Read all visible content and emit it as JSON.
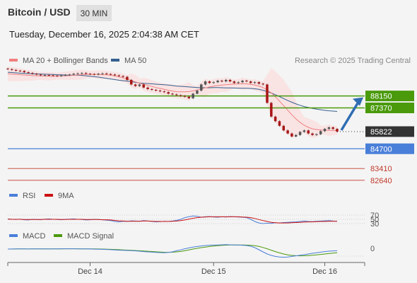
{
  "header": {
    "title": "Bitcoin / USD",
    "timeframe": "30 MIN",
    "datetime": "Tuesday, December 16, 2025 2:04:38 AM CET"
  },
  "legend": {
    "ma20": {
      "label": "MA 20 + Bollinger Bands",
      "color": "#f08080"
    },
    "ma50": {
      "label": "MA 50",
      "color": "#35608f"
    },
    "copyright": "Research © 2025 Trading Central"
  },
  "colors": {
    "resistance": "#4a9a0c",
    "current": "#333333",
    "support": "#4a7fd9",
    "lower": "#c0392b",
    "arrow": "#2f6db3",
    "rsi": "#4a7fd9",
    "rsi_ma": "#cc1111",
    "macd": "#4a7fd9",
    "macd_signal": "#4a9a0c"
  },
  "levels": [
    {
      "value": 88150,
      "label": "88150",
      "type": "resistance"
    },
    {
      "value": 87370,
      "label": "87370",
      "type": "resistance"
    },
    {
      "value": 85822,
      "label": "85822",
      "type": "current"
    },
    {
      "value": 84700,
      "label": "84700",
      "type": "support"
    },
    {
      "value": 83410,
      "label": "83410",
      "type": "lower"
    },
    {
      "value": 82640,
      "label": "82640",
      "type": "lower"
    }
  ],
  "rsi_panel": {
    "legend": [
      "RSI",
      "9MA"
    ],
    "levels": [
      "70",
      "50",
      "30"
    ]
  },
  "macd_panel": {
    "legend": [
      "MACD",
      "MACD Signal"
    ],
    "zero_label": "0"
  },
  "chart_data": {
    "type": "candlestick",
    "price_range": [
      81800,
      91600
    ],
    "x_labels": [
      "Dec 14",
      "Dec 15",
      "Dec 16"
    ],
    "close": [
      89900,
      89850,
      89800,
      89780,
      89700,
      89650,
      89600,
      89550,
      89500,
      89520,
      89500,
      89480,
      89450,
      89500,
      89520,
      89550,
      89600,
      89620,
      89650,
      89600,
      89580,
      89550,
      89600,
      89620,
      89580,
      89550,
      89500,
      89450,
      89400,
      89200,
      88900,
      88800,
      88900,
      88700,
      88600,
      88550,
      88500,
      88450,
      88400,
      88300,
      88250,
      88200,
      88150,
      88100,
      88000,
      88300,
      88500,
      88900,
      89100,
      89000,
      89050,
      89150,
      89100,
      89200,
      89100,
      89000,
      89050,
      89150,
      89100,
      89000,
      89050,
      88950,
      88900,
      87700,
      86800,
      86500,
      86200,
      85900,
      85700,
      85500,
      85600,
      85800,
      85900,
      85700,
      85600,
      85650,
      85850,
      86000,
      86100,
      86000,
      85822
    ],
    "ma20": [
      89600,
      89580,
      89560,
      89540,
      89520,
      89500,
      89480,
      89470,
      89460,
      89450,
      89440,
      89440,
      89450,
      89460,
      89470,
      89480,
      89500,
      89520,
      89540,
      89550,
      89560,
      89560,
      89550,
      89540,
      89530,
      89500,
      89460,
      89400,
      89330,
      89250,
      89160,
      89070,
      88990,
      88910,
      88840,
      88770,
      88700,
      88640,
      88580,
      88520,
      88470,
      88430,
      88420,
      88420,
      88440,
      88480,
      88540,
      88610,
      88680,
      88740,
      88790,
      88830,
      88860,
      88890,
      88910,
      88930,
      88940,
      88950,
      88940,
      88910,
      88870,
      88800,
      88700,
      88550,
      88350,
      88100,
      87820,
      87520,
      87220,
      86920,
      86650,
      86420,
      86240,
      86100,
      86000,
      85960,
      85930,
      85920,
      85910,
      85900,
      85890
    ],
    "ma50": [
      89700,
      89680,
      89660,
      89640,
      89620,
      89610,
      89600,
      89590,
      89580,
      89570,
      89560,
      89550,
      89540,
      89530,
      89520,
      89510,
      89510,
      89500,
      89490,
      89470,
      89440,
      89410,
      89380,
      89340,
      89300,
      89260,
      89220,
      89180,
      89150,
      89120,
      89080,
      89040,
      89000,
      88980,
      88960,
      88940,
      88920,
      88900,
      88880,
      88860,
      88830,
      88800,
      88780,
      88760,
      88740,
      88720,
      88700,
      88690,
      88690,
      88690,
      88700,
      88700,
      88690,
      88680,
      88680,
      88670,
      88660,
      88650,
      88650,
      88640,
      88620,
      88580,
      88520,
      88440,
      88340,
      88230,
      88110,
      87980,
      87850,
      87740,
      87630,
      87540,
      87460,
      87400,
      87340,
      87290,
      87250,
      87210,
      87180,
      87160,
      87140
    ],
    "rsi": [
      52,
      50,
      49,
      51,
      48,
      47,
      50,
      49,
      48,
      51,
      52,
      50,
      49,
      48,
      50,
      51,
      52,
      50,
      49,
      47,
      48,
      50,
      49,
      48,
      46,
      44,
      40,
      38,
      41,
      40,
      43,
      42,
      41,
      44,
      42,
      40,
      38,
      39,
      41,
      40,
      42,
      45,
      50,
      58,
      62,
      66,
      64,
      60,
      62,
      63,
      61,
      60,
      62,
      61,
      63,
      62,
      61,
      60,
      58,
      50,
      40,
      33,
      30,
      32,
      31,
      34,
      33,
      35,
      36,
      37,
      38,
      40,
      42,
      40,
      39,
      41,
      42,
      43,
      44,
      42,
      41
    ],
    "rsi_ma": [
      51,
      50,
      50,
      50,
      49,
      49,
      49,
      49,
      49,
      50,
      50,
      50,
      50,
      49,
      49,
      50,
      50,
      50,
      50,
      49,
      49,
      49,
      49,
      48,
      48,
      47,
      45,
      43,
      42,
      41,
      41,
      41,
      41,
      42,
      42,
      41,
      40,
      40,
      40,
      40,
      41,
      42,
      44,
      47,
      51,
      55,
      58,
      60,
      61,
      62,
      62,
      62,
      62,
      62,
      62,
      62,
      62,
      61,
      60,
      58,
      54,
      49,
      44,
      40,
      36,
      34,
      33,
      33,
      33,
      34,
      35,
      36,
      37,
      38,
      38,
      39,
      40,
      40,
      41,
      41,
      41
    ],
    "macd": [
      0,
      5,
      10,
      12,
      8,
      5,
      10,
      15,
      12,
      8,
      5,
      10,
      15,
      20,
      22,
      20,
      18,
      15,
      12,
      10,
      5,
      -5,
      -10,
      -20,
      -30,
      -45,
      -60,
      -80,
      -90,
      -100,
      -110,
      -130,
      -150,
      -180,
      -200,
      -220,
      -240,
      -250,
      -260,
      -240,
      -200,
      -120,
      -60,
      20,
      80,
      140,
      180,
      220,
      250,
      270,
      280,
      290,
      300,
      310,
      300,
      290,
      280,
      270,
      250,
      200,
      100,
      -50,
      -200,
      -350,
      -450,
      -520,
      -560,
      -580,
      -560,
      -520,
      -480,
      -440,
      -400,
      -350,
      -300,
      -260,
      -220,
      -180,
      -150,
      -130,
      -120
    ],
    "macd_signal": [
      0,
      2,
      5,
      8,
      8,
      7,
      8,
      10,
      11,
      10,
      9,
      10,
      12,
      15,
      18,
      19,
      19,
      18,
      16,
      14,
      12,
      8,
      4,
      -2,
      -8,
      -18,
      -30,
      -45,
      -60,
      -75,
      -90,
      -105,
      -120,
      -135,
      -155,
      -175,
      -195,
      -210,
      -225,
      -230,
      -225,
      -200,
      -170,
      -120,
      -60,
      0,
      50,
      100,
      140,
      180,
      210,
      240,
      260,
      275,
      285,
      288,
      287,
      285,
      280,
      265,
      235,
      185,
      110,
      20,
      -80,
      -180,
      -270,
      -350,
      -410,
      -450,
      -470,
      -480,
      -475,
      -460,
      -440,
      -410,
      -380,
      -350,
      -320,
      -290,
      -260
    ],
    "rsi_levels": [
      70,
      50,
      30
    ],
    "forecast_arrow": {
      "from": 85822,
      "to": 88150
    }
  }
}
